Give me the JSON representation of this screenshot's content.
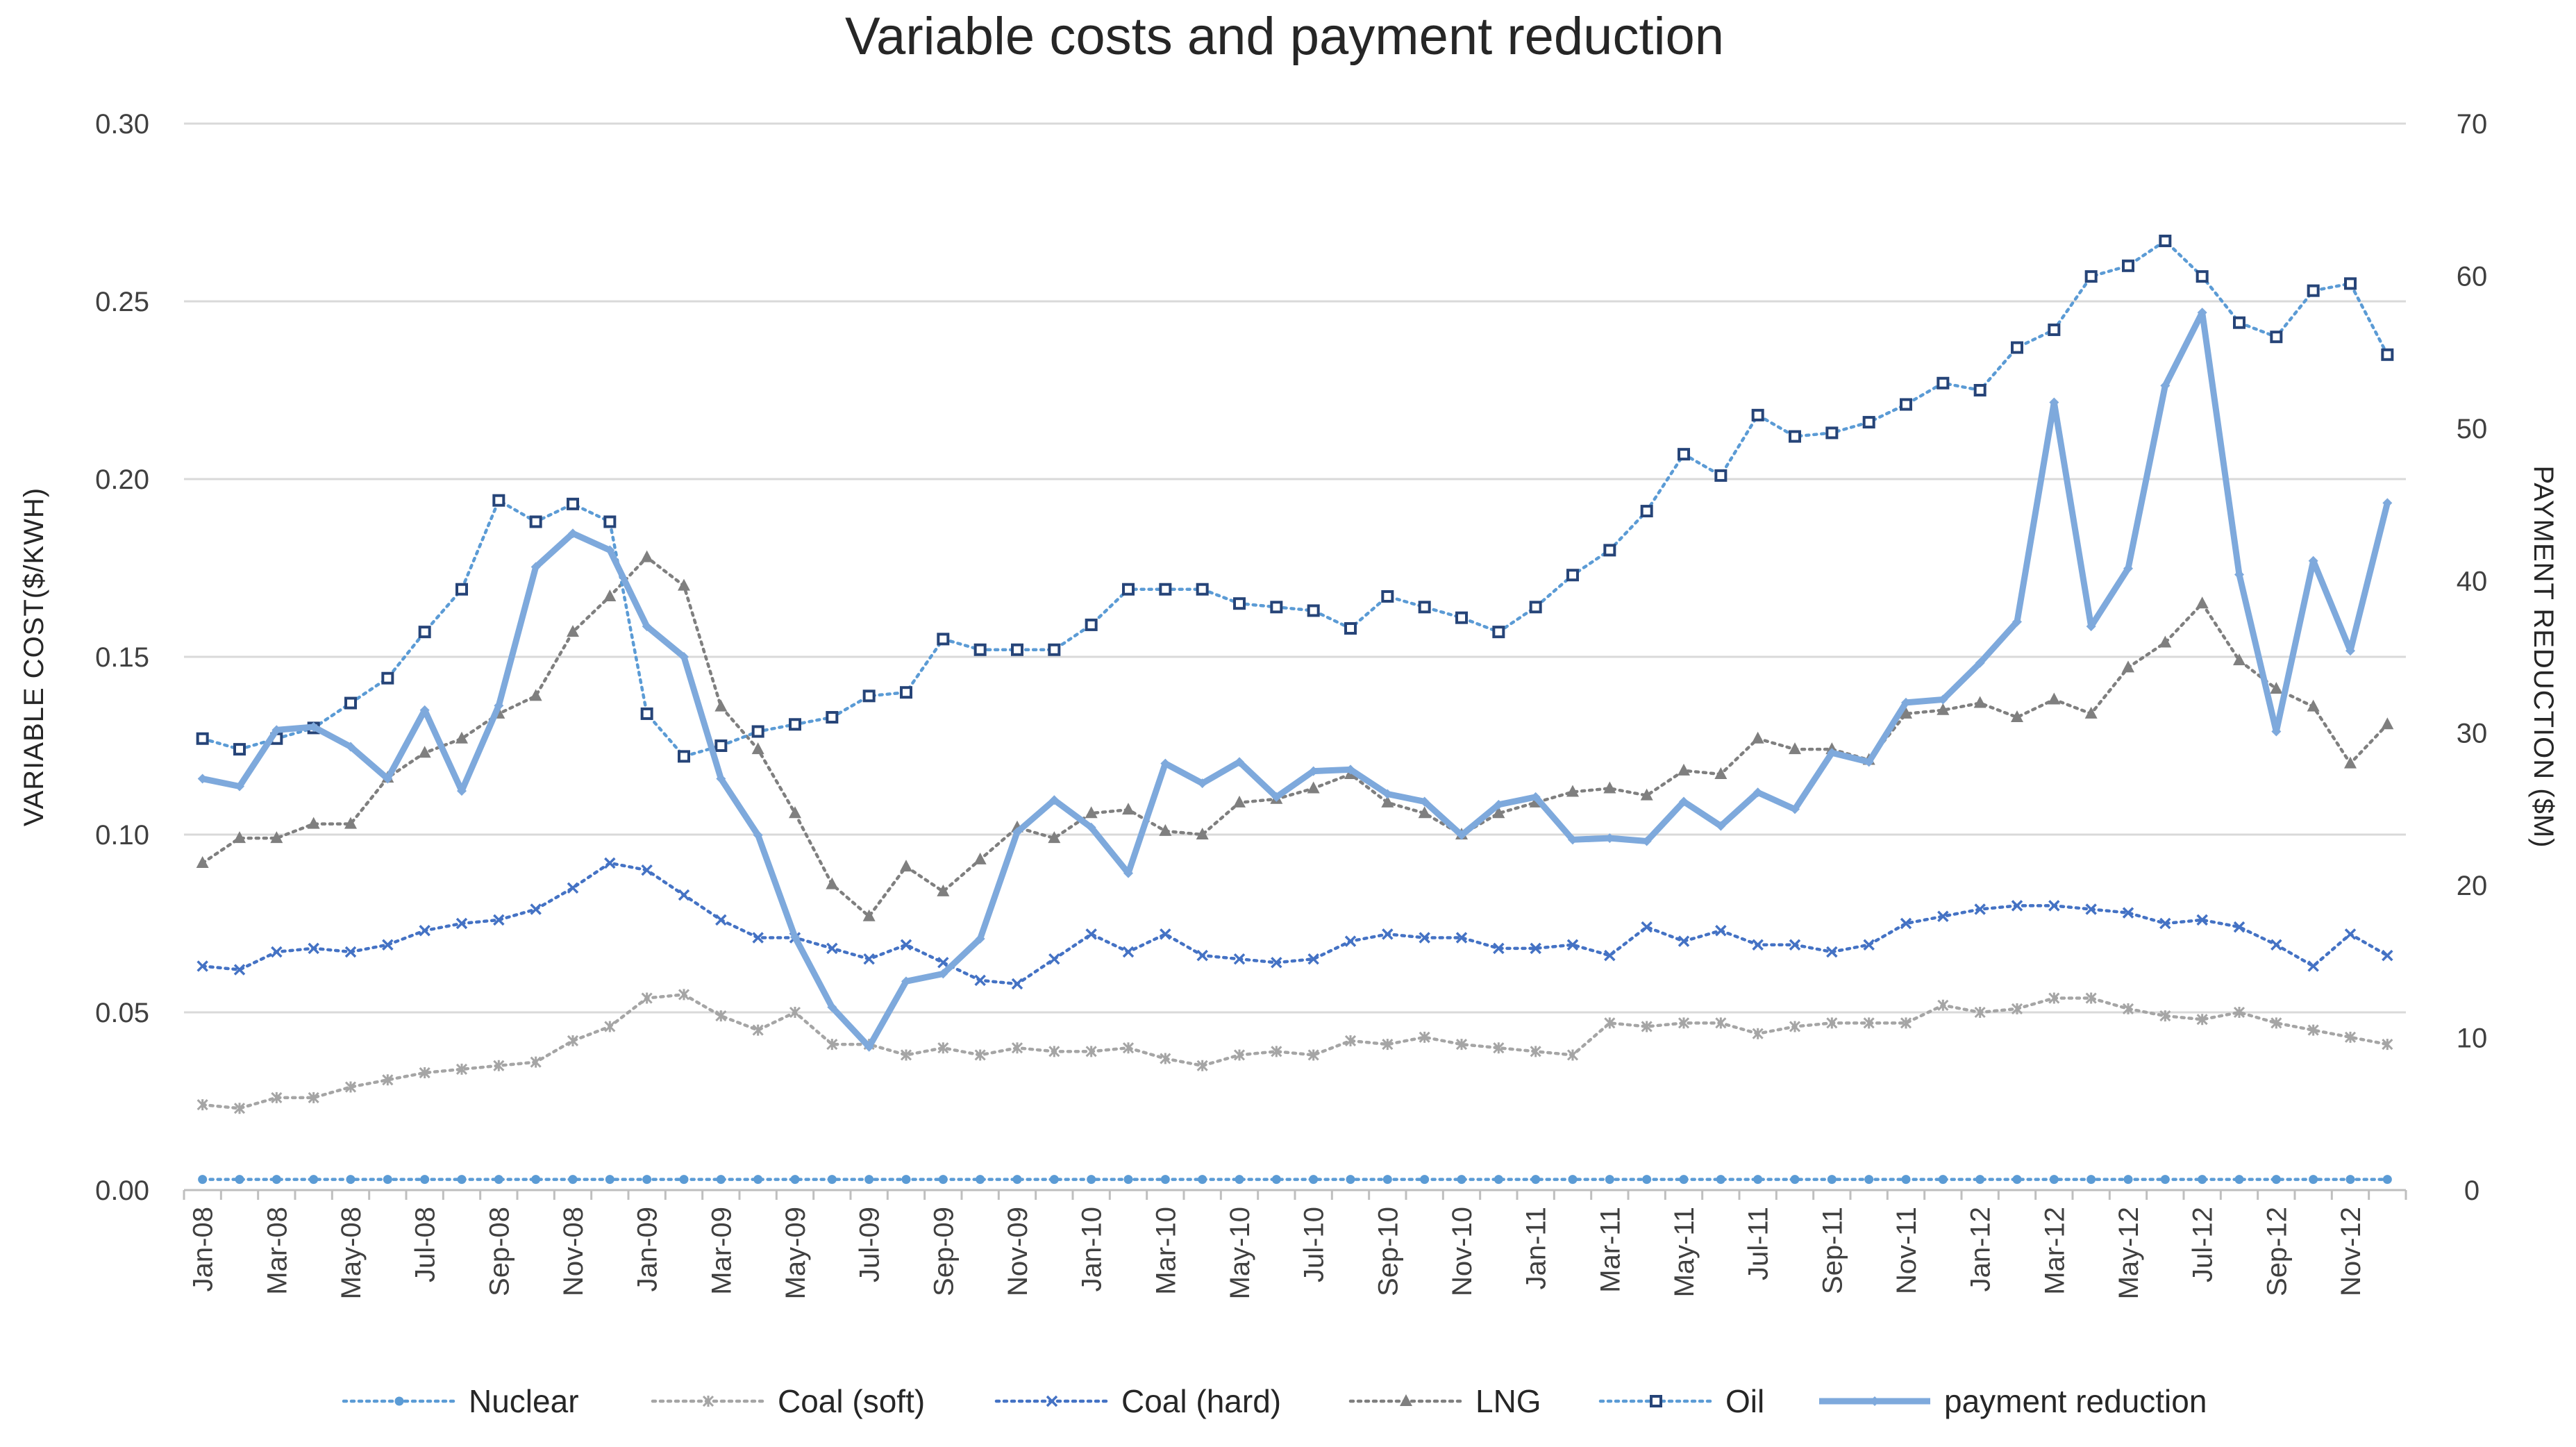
{
  "colors": {
    "nuclear": "#5B9BD5",
    "coal_soft": "#A5A5A5",
    "coal_hard": "#4472C4",
    "lng": "#7F7F7F",
    "oil": "#5B9BD5",
    "oil_marker": "#264478",
    "payment": "#7EA9DC",
    "gridline": "#D9D9D9"
  },
  "chart_data": {
    "type": "line",
    "title": "Variable costs and payment reduction",
    "ylabel": "VARIABLE COST($/KWH)",
    "y2label": "PAYMENT REDUCTION ($M)",
    "ylim": [
      0,
      0.3
    ],
    "y2lim": [
      0,
      70
    ],
    "yticks": [
      "0.00",
      "0.05",
      "0.10",
      "0.15",
      "0.20",
      "0.25",
      "0.30"
    ],
    "y2ticks": [
      "0",
      "10",
      "20",
      "30",
      "40",
      "50",
      "60",
      "70"
    ],
    "categories": [
      "Jan-08",
      "Feb-08",
      "Mar-08",
      "Apr-08",
      "May-08",
      "Jun-08",
      "Jul-08",
      "Aug-08",
      "Sep-08",
      "Oct-08",
      "Nov-08",
      "Dec-08",
      "Jan-09",
      "Feb-09",
      "Mar-09",
      "Apr-09",
      "May-09",
      "Jun-09",
      "Jul-09",
      "Aug-09",
      "Sep-09",
      "Oct-09",
      "Nov-09",
      "Dec-09",
      "Jan-10",
      "Feb-10",
      "Mar-10",
      "Apr-10",
      "May-10",
      "Jun-10",
      "Jul-10",
      "Aug-10",
      "Sep-10",
      "Oct-10",
      "Nov-10",
      "Dec-10",
      "Jan-11",
      "Feb-11",
      "Mar-11",
      "Apr-11",
      "May-11",
      "Jun-11",
      "Jul-11",
      "Aug-11",
      "Sep-11",
      "Oct-11",
      "Nov-11",
      "Dec-11",
      "Jan-12",
      "Feb-12",
      "Mar-12",
      "Apr-12",
      "May-12",
      "Jun-12",
      "Jul-12",
      "Aug-12",
      "Sep-12",
      "Oct-12",
      "Nov-12",
      "Dec-12"
    ],
    "xtick_labels": [
      "Jan-08",
      "Mar-08",
      "May-08",
      "Jul-08",
      "Sep-08",
      "Nov-08",
      "Jan-09",
      "Mar-09",
      "May-09",
      "Jul-09",
      "Sep-09",
      "Nov-09",
      "Jan-10",
      "Mar-10",
      "May-10",
      "Jul-10",
      "Sep-10",
      "Nov-10",
      "Jan-11",
      "Mar-11",
      "May-11",
      "Jul-11",
      "Sep-11",
      "Nov-11",
      "Jan-12",
      "Mar-12",
      "May-12",
      "Jul-12",
      "Sep-12",
      "Nov-12"
    ],
    "series": [
      {
        "name": "Nuclear",
        "key": "nuclear",
        "axis": "left",
        "style": "dotted",
        "marker": "circle",
        "values": [
          0.003,
          0.003,
          0.003,
          0.003,
          0.003,
          0.003,
          0.003,
          0.003,
          0.003,
          0.003,
          0.003,
          0.003,
          0.003,
          0.003,
          0.003,
          0.003,
          0.003,
          0.003,
          0.003,
          0.003,
          0.003,
          0.003,
          0.003,
          0.003,
          0.003,
          0.003,
          0.003,
          0.003,
          0.003,
          0.003,
          0.003,
          0.003,
          0.003,
          0.003,
          0.003,
          0.003,
          0.003,
          0.003,
          0.003,
          0.003,
          0.003,
          0.003,
          0.003,
          0.003,
          0.003,
          0.003,
          0.003,
          0.003,
          0.003,
          0.003,
          0.003,
          0.003,
          0.003,
          0.003,
          0.003,
          0.003,
          0.003,
          0.003,
          0.003,
          0.003
        ]
      },
      {
        "name": "Coal (soft)",
        "key": "coal_soft",
        "axis": "left",
        "style": "dotted",
        "marker": "asterisk",
        "values": [
          0.024,
          0.023,
          0.026,
          0.026,
          0.029,
          0.031,
          0.033,
          0.034,
          0.035,
          0.036,
          0.042,
          0.046,
          0.054,
          0.055,
          0.049,
          0.045,
          0.05,
          0.041,
          0.041,
          0.038,
          0.04,
          0.038,
          0.04,
          0.039,
          0.039,
          0.04,
          0.037,
          0.035,
          0.038,
          0.039,
          0.038,
          0.042,
          0.041,
          0.043,
          0.041,
          0.04,
          0.039,
          0.038,
          0.047,
          0.046,
          0.047,
          0.047,
          0.044,
          0.046,
          0.047,
          0.047,
          0.047,
          0.052,
          0.05,
          0.051,
          0.054,
          0.054,
          0.051,
          0.049,
          0.048,
          0.05,
          0.047,
          0.045,
          0.043,
          0.041
        ]
      },
      {
        "name": "Coal (hard)",
        "key": "coal_hard",
        "axis": "left",
        "style": "dotted",
        "marker": "x",
        "values": [
          0.063,
          0.062,
          0.067,
          0.068,
          0.067,
          0.069,
          0.073,
          0.075,
          0.076,
          0.079,
          0.085,
          0.092,
          0.09,
          0.083,
          0.076,
          0.071,
          0.071,
          0.068,
          0.065,
          0.069,
          0.064,
          0.059,
          0.058,
          0.065,
          0.072,
          0.067,
          0.072,
          0.066,
          0.065,
          0.064,
          0.065,
          0.07,
          0.072,
          0.071,
          0.071,
          0.068,
          0.068,
          0.069,
          0.066,
          0.074,
          0.07,
          0.073,
          0.069,
          0.069,
          0.067,
          0.069,
          0.075,
          0.077,
          0.079,
          0.08,
          0.08,
          0.079,
          0.078,
          0.075,
          0.076,
          0.074,
          0.069,
          0.063,
          0.072,
          0.066
        ]
      },
      {
        "name": "LNG",
        "key": "lng",
        "axis": "left",
        "style": "dotted",
        "marker": "triangle",
        "values": [
          0.092,
          0.099,
          0.099,
          0.103,
          0.103,
          0.116,
          0.123,
          0.127,
          0.134,
          0.139,
          0.157,
          0.167,
          0.178,
          0.17,
          0.136,
          0.124,
          0.106,
          0.086,
          0.077,
          0.091,
          0.084,
          0.093,
          0.102,
          0.099,
          0.106,
          0.107,
          0.101,
          0.1,
          0.109,
          0.11,
          0.113,
          0.117,
          0.109,
          0.106,
          0.1,
          0.106,
          0.109,
          0.112,
          0.113,
          0.111,
          0.118,
          0.117,
          0.127,
          0.124,
          0.124,
          0.121,
          0.134,
          0.135,
          0.137,
          0.133,
          0.138,
          0.134,
          0.147,
          0.154,
          0.165,
          0.149,
          0.141,
          0.136,
          0.12,
          0.131
        ]
      },
      {
        "name": "Oil",
        "key": "oil",
        "axis": "left",
        "style": "dotted",
        "marker": "square",
        "values": [
          0.127,
          0.124,
          0.127,
          0.13,
          0.137,
          0.144,
          0.157,
          0.169,
          0.194,
          0.188,
          0.193,
          0.188,
          0.134,
          0.122,
          0.125,
          0.129,
          0.131,
          0.133,
          0.139,
          0.14,
          0.155,
          0.152,
          0.152,
          0.152,
          0.159,
          0.169,
          0.169,
          0.169,
          0.165,
          0.164,
          0.163,
          0.158,
          0.167,
          0.164,
          0.161,
          0.157,
          0.164,
          0.173,
          0.18,
          0.191,
          0.207,
          0.201,
          0.218,
          0.212,
          0.213,
          0.216,
          0.221,
          0.227,
          0.225,
          0.237,
          0.242,
          0.257,
          0.26,
          0.267,
          0.257,
          0.244,
          0.24,
          0.253,
          0.255,
          0.235
        ]
      },
      {
        "name": "payment reduction",
        "key": "payment",
        "axis": "right",
        "style": "solid",
        "marker": "diamond",
        "values": [
          27.0,
          26.5,
          30.2,
          30.4,
          29.1,
          27.0,
          31.5,
          26.2,
          31.8,
          40.9,
          43.1,
          42.0,
          37.0,
          35.0,
          27.0,
          23.3,
          16.6,
          12.0,
          9.4,
          13.7,
          14.2,
          16.5,
          23.5,
          25.6,
          23.8,
          20.8,
          28.0,
          26.7,
          28.1,
          25.8,
          27.5,
          27.6,
          26.0,
          25.5,
          23.3,
          25.3,
          25.8,
          23.0,
          23.1,
          22.9,
          25.5,
          23.9,
          26.1,
          25.0,
          28.7,
          28.1,
          32.0,
          32.2,
          34.6,
          37.3,
          51.7,
          37.0,
          40.8,
          52.8,
          57.6,
          40.4,
          30.1,
          41.3,
          35.4,
          45.1
        ]
      }
    ],
    "legend_position": "bottom",
    "grid": true
  }
}
